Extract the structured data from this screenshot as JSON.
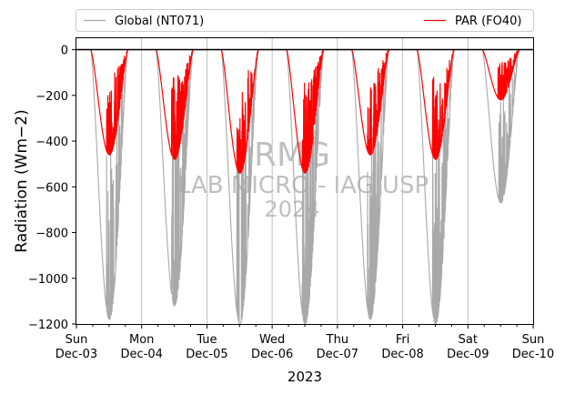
{
  "chart_data": {
    "type": "line",
    "xlabel": "2023",
    "ylabel": "Radiation (Wm−2)",
    "ylim": [
      -1200,
      50
    ],
    "xlim": [
      "2023-12-03",
      "2023-12-10"
    ],
    "x_ticks": [
      {
        "day": "Sun",
        "date": "Dec-03"
      },
      {
        "day": "Mon",
        "date": "Dec-04"
      },
      {
        "day": "Tue",
        "date": "Dec-05"
      },
      {
        "day": "Wed",
        "date": "Dec-06"
      },
      {
        "day": "Thu",
        "date": "Dec-07"
      },
      {
        "day": "Fri",
        "date": "Dec-08"
      },
      {
        "day": "Sat",
        "date": "Dec-09"
      },
      {
        "day": "Sun",
        "date": "Dec-10"
      }
    ],
    "y_ticks": [
      "0",
      "−200",
      "−400",
      "−600",
      "−800",
      "−1000",
      "−1200"
    ],
    "y_tick_values": [
      0,
      -200,
      -400,
      -600,
      -800,
      -1000,
      -1200
    ],
    "grid": "vertical",
    "legend_position": "top",
    "watermark": [
      "RMG",
      "LAB MICRO - IAG USP",
      "2024"
    ],
    "series": [
      {
        "name": "Global (NT071)",
        "color": "#a9a9a9",
        "daily_minimum": [
          {
            "date": "2023-12-03",
            "min": -1180
          },
          {
            "date": "2023-12-04",
            "min": -1120
          },
          {
            "date": "2023-12-05",
            "min": -1200
          },
          {
            "date": "2023-12-06",
            "min": -1200
          },
          {
            "date": "2023-12-07",
            "min": -1180
          },
          {
            "date": "2023-12-08",
            "min": -1200
          },
          {
            "date": "2023-12-09",
            "min": -670
          }
        ]
      },
      {
        "name": "PAR (FO40)",
        "color": "#ff0000",
        "daily_minimum": [
          {
            "date": "2023-12-03",
            "min": -460
          },
          {
            "date": "2023-12-04",
            "min": -480
          },
          {
            "date": "2023-12-05",
            "min": -540
          },
          {
            "date": "2023-12-06",
            "min": -540
          },
          {
            "date": "2023-12-07",
            "min": -460
          },
          {
            "date": "2023-12-08",
            "min": -480
          },
          {
            "date": "2023-12-09",
            "min": -220
          }
        ]
      }
    ],
    "reference_line": {
      "y": 0,
      "color": "#000000"
    }
  }
}
